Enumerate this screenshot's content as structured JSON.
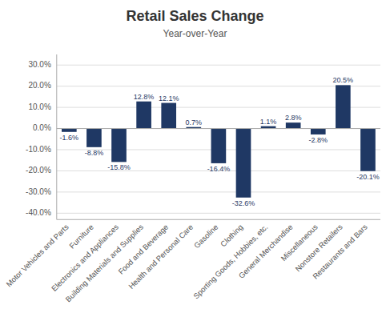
{
  "chart_data": {
    "type": "bar",
    "title": "Retail Sales Change",
    "subtitle": "Year-over-Year",
    "categories": [
      "Motor Vehicles and Parts",
      "Furniture",
      "Electronics and Appliances",
      "Building Materials and Supplies",
      "Food and Beverage",
      "Health and Personal Care",
      "Gasoline",
      "Clothing",
      "Sporting Goods, Hobbies, etc.",
      "General Merchandise",
      "Miscellaneous",
      "Nonstore Retailers",
      "Restaurants and Bars"
    ],
    "values": [
      -1.6,
      -8.8,
      -15.8,
      12.8,
      12.1,
      0.7,
      -16.4,
      -32.6,
      1.1,
      2.8,
      -2.8,
      20.5,
      -20.1
    ],
    "value_labels": [
      "-1.6%",
      "-8.8%",
      "-15.8%",
      "12.8%",
      "12.1%",
      "0.7%",
      "-16.4%",
      "-32.6%",
      "1.1%",
      "2.8%",
      "-2.8%",
      "20.5%",
      "-20.1%"
    ],
    "color": "#1F3864",
    "ylim": [
      -43,
      35
    ],
    "yticks": [
      {
        "value": -40,
        "label": "-40.0%"
      },
      {
        "value": -30,
        "label": "-30.0%"
      },
      {
        "value": -20,
        "label": "-20.0%"
      },
      {
        "value": -10,
        "label": "-10.0%"
      },
      {
        "value": 0,
        "label": "0.0%"
      },
      {
        "value": 10,
        "label": "10.0%"
      },
      {
        "value": 20,
        "label": "20.0%"
      },
      {
        "value": 30,
        "label": "30.0%"
      }
    ],
    "grid": true,
    "data_labels": true
  }
}
